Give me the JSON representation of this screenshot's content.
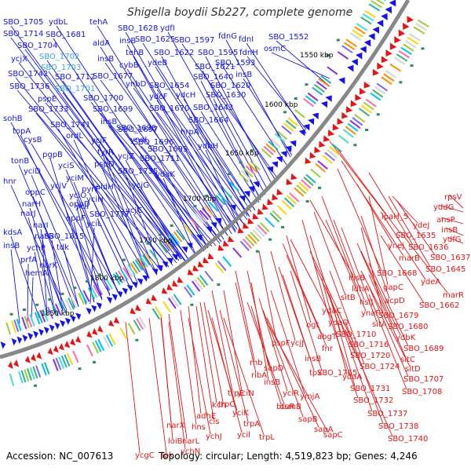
{
  "title": "Shigella boydii Sb227, complete genome",
  "footer": {
    "accession": "Accession: NC_007613",
    "topology": "Topology: circular; Length: 4,519,823 bp; Genes: 4,246"
  },
  "colors": {
    "forward": "#1414e6",
    "reverse": "#e61414",
    "highlight": "#33aadd",
    "backbone": "#888888",
    "background": "#ffffff"
  },
  "kbp_ticks": [
    "1550 kbp",
    "1600 kbp",
    "1650 kbp",
    "1700 kbp",
    "1750 kbp",
    "1800 kbp",
    "1850 kbp"
  ],
  "forward_labels": [
    "SBO_1705",
    "ydbL",
    "tehA",
    "SBO_1628",
    "ydfI",
    "fdnG",
    "fdnI",
    "SBO_1552",
    "SBO_1714",
    "SBO_1681",
    "aldA",
    "insB",
    "SBO_1625",
    "SBO_1597",
    "fdnH",
    "osmC",
    "SBO_1704",
    "tehB",
    "SBO_1622",
    "SBO_1595",
    "SBO_1593",
    "ycjX",
    "SBO_1702",
    "insB",
    "cybB",
    "ydeB",
    "SBO_1621",
    "insB",
    "SBO_1742",
    "SBO_1703",
    "SBO_1712",
    "SBO_1677",
    "ynbD",
    "SBO_1654",
    "SBO_1640",
    "SBO_1620",
    "SBO_1736",
    "SBO_1701",
    "pspE",
    "SBO_1700",
    "ydcF",
    "ydcH",
    "SBO_1630",
    "SBO_1733",
    "SBO_1699",
    "SBO_1670",
    "SBO_1643",
    "sohB",
    "SBO_1741",
    "insB",
    "SBO_1698",
    "SBO_1664",
    "topA",
    "ordL",
    "SBO_1697",
    "hrpA",
    "cysB",
    "ycjF",
    "ynaI",
    "SBO_1696",
    "pgpB",
    "tyrR",
    "SBO_1695",
    "ydbH",
    "tonB",
    "yciS",
    "pspD",
    "ycjZ",
    "SBO_1711",
    "yciD",
    "yciM",
    "SBO_1735",
    "ydaK",
    "hnr",
    "yciV",
    "pyrF",
    "aldH",
    "ycjG",
    "oppC",
    "yciO",
    "yciH",
    "narH",
    "oppD",
    "yciI",
    "ycjC",
    "narJ",
    "oppF",
    "SBO_1777",
    "kdsA",
    "narI",
    "yciL",
    "narG",
    "SBO_1815",
    "insB",
    "ychP",
    "tdk",
    "prfA",
    "narK",
    "hemA"
  ],
  "reverse_labels": [
    "rpsV",
    "yddG",
    "ansP",
    "insB",
    "ydfG",
    "ipaH_5",
    "ydeJ",
    "SBO_1635",
    "ynej",
    "SBO_1636",
    "marB",
    "SBO_1637",
    "SBO_1668",
    "SBO_1645",
    "ydeA",
    "marR",
    "SBO_1662",
    "insB",
    "ldhA",
    "gapC",
    "sitB",
    "hslJ",
    "acpD",
    "ydaC",
    "ynaF",
    "SBO_1679",
    "ydaO",
    "sitA",
    "SBO_1680",
    "ogt",
    "abgT",
    "SBO_1710",
    "ydbK",
    "SBO_1716",
    "SBO_1689",
    "fnr",
    "SBO_1720",
    "sitC",
    "pspF",
    "ycjJ",
    "insB",
    "SBO_1765",
    "tpx",
    "SBO_1724",
    "sitD",
    "rnb",
    "sapD",
    "ydaA",
    "SBO_1707",
    "SBO_1708",
    "ribA",
    "insB",
    "ymjA",
    "SBO_1731",
    "trpE",
    "yciN",
    "yciR",
    "SBO_1732",
    "kch",
    "osmB",
    "SBO_1737",
    "trpC",
    "btuR",
    "sapB",
    "SBO_1738",
    "adhE",
    "yciK",
    "trpA",
    "sapA",
    "cls",
    "SBO_1740",
    "hns",
    "ycil",
    "trpL",
    "sapC",
    "narX",
    "narL",
    "ychJ",
    "loiB",
    "ipk",
    "ychN",
    "ycgC"
  ]
}
